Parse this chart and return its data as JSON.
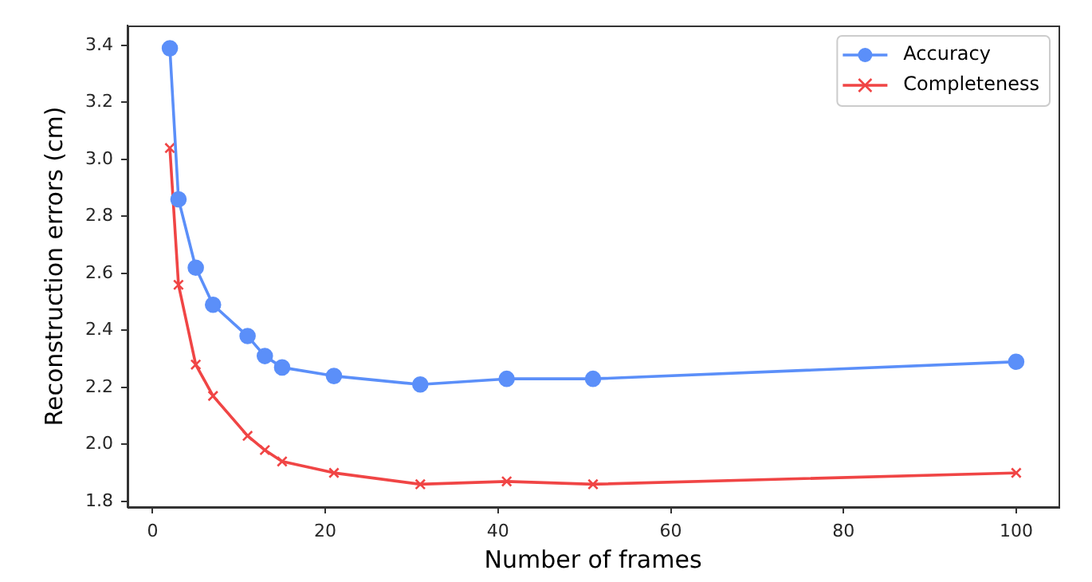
{
  "chart_data": {
    "type": "line",
    "xlabel": "Number of frames",
    "ylabel": "Reconstruction errors (cm)",
    "x": [
      2,
      3,
      5,
      7,
      11,
      13,
      15,
      21,
      31,
      41,
      51,
      100
    ],
    "series": [
      {
        "name": "Accuracy",
        "color": "#5b8ff9",
        "marker": "circle",
        "values": [
          3.39,
          2.86,
          2.62,
          2.49,
          2.38,
          2.31,
          2.27,
          2.24,
          2.21,
          2.23,
          2.23,
          2.29
        ]
      },
      {
        "name": "Completeness",
        "color": "#f04545",
        "marker": "cross",
        "values": [
          3.04,
          2.56,
          2.28,
          2.17,
          2.03,
          1.98,
          1.94,
          1.9,
          1.86,
          1.87,
          1.86,
          1.9
        ]
      }
    ],
    "xlim": [
      -2.9,
      104.9
    ],
    "ylim": [
      1.78,
      3.47
    ],
    "xticks": [
      0,
      20,
      40,
      60,
      80,
      100
    ],
    "yticks": [
      1.8,
      {
        "value": 2,
        "label": "2.0"
      },
      2.2,
      2.4,
      2.6,
      2.8,
      {
        "value": 3,
        "label": "3.0"
      },
      3.2,
      3.4
    ],
    "grid": false,
    "legend": "top right"
  }
}
